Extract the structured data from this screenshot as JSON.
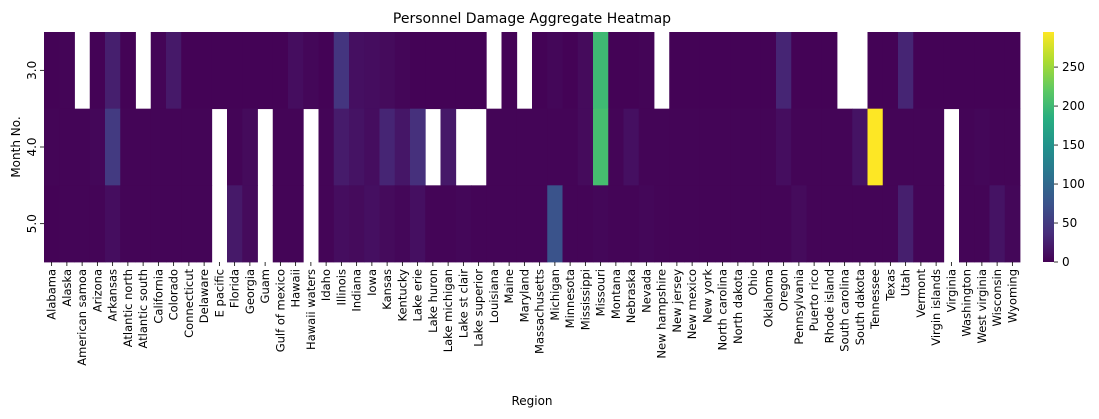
{
  "chart_data": {
    "type": "heatmap",
    "title": "Personnel Damage Aggregate Heatmap",
    "xlabel": "Region",
    "ylabel": "Month No.",
    "x_categories": [
      "Alabama",
      "Alaska",
      "American samoa",
      "Arizona",
      "Arkansas",
      "Atlantic north",
      "Atlantic south",
      "California",
      "Colorado",
      "Connecticut",
      "Delaware",
      "E pacific",
      "Florida",
      "Georgia",
      "Guam",
      "Gulf of mexico",
      "Hawaii",
      "Hawaii waters",
      "Idaho",
      "Illinois",
      "Indiana",
      "Iowa",
      "Kansas",
      "Kentucky",
      "Lake erie",
      "Lake huron",
      "Lake michigan",
      "Lake st clair",
      "Lake superior",
      "Louisiana",
      "Maine",
      "Maryland",
      "Massachusetts",
      "Michigan",
      "Minnesota",
      "Mississippi",
      "Missouri",
      "Montana",
      "Nebraska",
      "Nevada",
      "New hampshire",
      "New jersey",
      "New mexico",
      "New york",
      "North carolina",
      "North dakota",
      "Ohio",
      "Oklahoma",
      "Oregon",
      "Pennsylvania",
      "Puerto rico",
      "Rhode island",
      "South carolina",
      "South dakota",
      "Tennessee",
      "Texas",
      "Utah",
      "Vermont",
      "Virgin islands",
      "Virginia",
      "Washington",
      "West virginia",
      "Wisconsin",
      "Wyoming"
    ],
    "y_categories": [
      "3.0",
      "4.0",
      "5.0"
    ],
    "colorbar": {
      "min": 0,
      "max": 295,
      "ticks": [
        "0",
        "50",
        "100",
        "150",
        "200",
        "250"
      ],
      "tick_values": [
        0,
        50,
        100,
        150,
        200,
        250
      ],
      "colormap": "viridis"
    },
    "values": [
      [
        2,
        3,
        null,
        2,
        25,
        2,
        null,
        3,
        20,
        2,
        2,
        2,
        2,
        2,
        2,
        2,
        10,
        5,
        2,
        45,
        12,
        10,
        8,
        4,
        2,
        2,
        2,
        2,
        2,
        null,
        2,
        null,
        2,
        5,
        2,
        8,
        200,
        2,
        2,
        3,
        null,
        2,
        2,
        2,
        2,
        2,
        2,
        2,
        30,
        2,
        2,
        2,
        null,
        null,
        2,
        2,
        30,
        2,
        2,
        2,
        2,
        2,
        2,
        2
      ],
      [
        3,
        3,
        3,
        5,
        50,
        3,
        3,
        3,
        3,
        3,
        3,
        null,
        3,
        8,
        null,
        3,
        3,
        null,
        3,
        22,
        15,
        10,
        30,
        18,
        40,
        null,
        20,
        null,
        null,
        3,
        3,
        3,
        3,
        3,
        3,
        8,
        205,
        3,
        12,
        3,
        3,
        3,
        3,
        3,
        3,
        3,
        3,
        3,
        10,
        3,
        3,
        3,
        3,
        15,
        295,
        3,
        3,
        3,
        3,
        null,
        3,
        5,
        3,
        3
      ],
      [
        2,
        3,
        3,
        3,
        10,
        3,
        3,
        3,
        3,
        3,
        3,
        null,
        20,
        8,
        null,
        3,
        3,
        null,
        3,
        10,
        8,
        12,
        8,
        5,
        12,
        3,
        3,
        5,
        3,
        3,
        3,
        3,
        3,
        75,
        3,
        3,
        5,
        3,
        3,
        5,
        3,
        3,
        3,
        3,
        3,
        3,
        3,
        3,
        3,
        8,
        3,
        3,
        3,
        3,
        3,
        3,
        25,
        3,
        3,
        null,
        3,
        3,
        15,
        5
      ]
    ]
  }
}
